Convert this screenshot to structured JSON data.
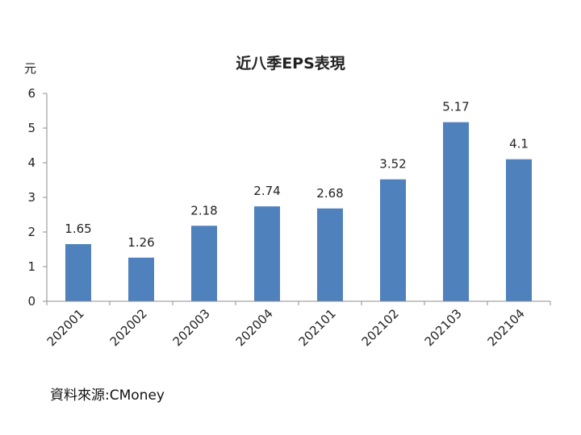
{
  "chart_data": {
    "type": "bar",
    "title": "近八季EPS表現",
    "unit": "元",
    "categories": [
      "202001",
      "202002",
      "202003",
      "202004",
      "202101",
      "202102",
      "202103",
      "202104"
    ],
    "values": [
      1.65,
      1.26,
      2.18,
      2.74,
      2.68,
      3.52,
      5.17,
      4.1
    ],
    "value_labels": [
      "1.65",
      "1.26",
      "2.18",
      "2.74",
      "2.68",
      "3.52",
      "5.17",
      "4.1"
    ],
    "ylim": [
      0,
      6
    ],
    "yticks": [
      "0",
      "1",
      "2",
      "3",
      "4",
      "5",
      "6"
    ],
    "grid": false,
    "legend": "none",
    "bar_color": "#4f81bd",
    "axis_color": "#8c8c8c"
  },
  "source": "資料來源:CMoney"
}
